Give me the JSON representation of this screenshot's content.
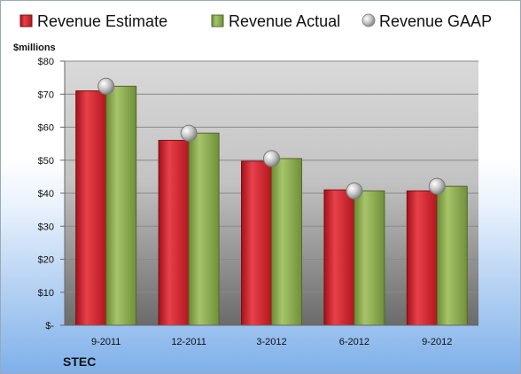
{
  "chart_data": {
    "type": "bar",
    "unit_label": "$millions",
    "ticker": "STEC",
    "categories": [
      "9-2011",
      "12-2011",
      "3-2012",
      "6-2012",
      "9-2012"
    ],
    "series": [
      {
        "name": "Revenue Estimate",
        "kind": "bar",
        "color": "#d7242c",
        "values": [
          71.0,
          56.0,
          49.7,
          41.0,
          40.7
        ]
      },
      {
        "name": "Revenue Actual",
        "kind": "bar",
        "color": "#8fb055",
        "values": [
          72.4,
          58.2,
          50.5,
          40.7,
          42.1
        ]
      },
      {
        "name": "Revenue GAAP",
        "kind": "marker",
        "color": "#b9b9b9",
        "values": [
          72.4,
          58.2,
          50.5,
          40.7,
          42.1
        ]
      }
    ],
    "y_ticks": [
      {
        "value": 0,
        "label": "$-"
      },
      {
        "value": 10,
        "label": "$10"
      },
      {
        "value": 20,
        "label": "$20"
      },
      {
        "value": 30,
        "label": "$30"
      },
      {
        "value": 40,
        "label": "$40"
      },
      {
        "value": 50,
        "label": "$50"
      },
      {
        "value": 60,
        "label": "$60"
      },
      {
        "value": 70,
        "label": "$70"
      },
      {
        "value": 80,
        "label": "$80"
      }
    ],
    "ylim": [
      0,
      80
    ],
    "grid": true,
    "legend_position": "top"
  }
}
